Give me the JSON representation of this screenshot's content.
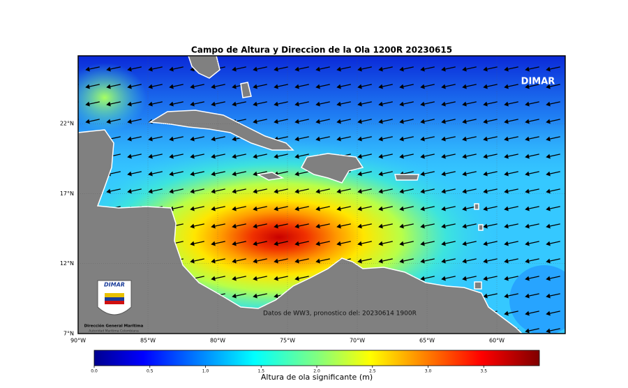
{
  "title": "Campo de Altura y Direccion de la Ola 1200R 20230615",
  "map": {
    "xlim": [
      -90,
      -55.1
    ],
    "ylim": [
      7,
      26.85
    ],
    "xticks": [
      {
        "value": -90,
        "label": "90°W"
      },
      {
        "value": -85,
        "label": "85°W"
      },
      {
        "value": -80,
        "label": "80°W"
      },
      {
        "value": -75,
        "label": "75°W"
      },
      {
        "value": -70,
        "label": "70°W"
      },
      {
        "value": -65,
        "label": "65°W"
      },
      {
        "value": -60,
        "label": "60°W"
      }
    ],
    "yticks": [
      {
        "value": 7,
        "label": "7°N"
      },
      {
        "value": 12,
        "label": "12°N"
      },
      {
        "value": 17,
        "label": "17°N"
      },
      {
        "value": 22,
        "label": "22°N"
      }
    ],
    "watermark": "DIMAR",
    "annotation": "Datos de WW3, pronostico del: 20230614 1900R"
  },
  "logo": {
    "brand": "DIMAR",
    "name": "Dirección General Marítima",
    "subtitle": "Autoridad Marítima Colombiana"
  },
  "colorbar": {
    "label": "Altura de ola significante (m)",
    "lim": [
      0,
      4
    ],
    "ticks": [
      {
        "value": 0,
        "label": "0.0"
      },
      0.5,
      {
        "value": 1,
        "label": "1.0"
      },
      1.5,
      {
        "value": 2,
        "label": "2.0"
      },
      2.5,
      {
        "value": 3,
        "label": "3.0"
      },
      3.5
    ]
  }
}
